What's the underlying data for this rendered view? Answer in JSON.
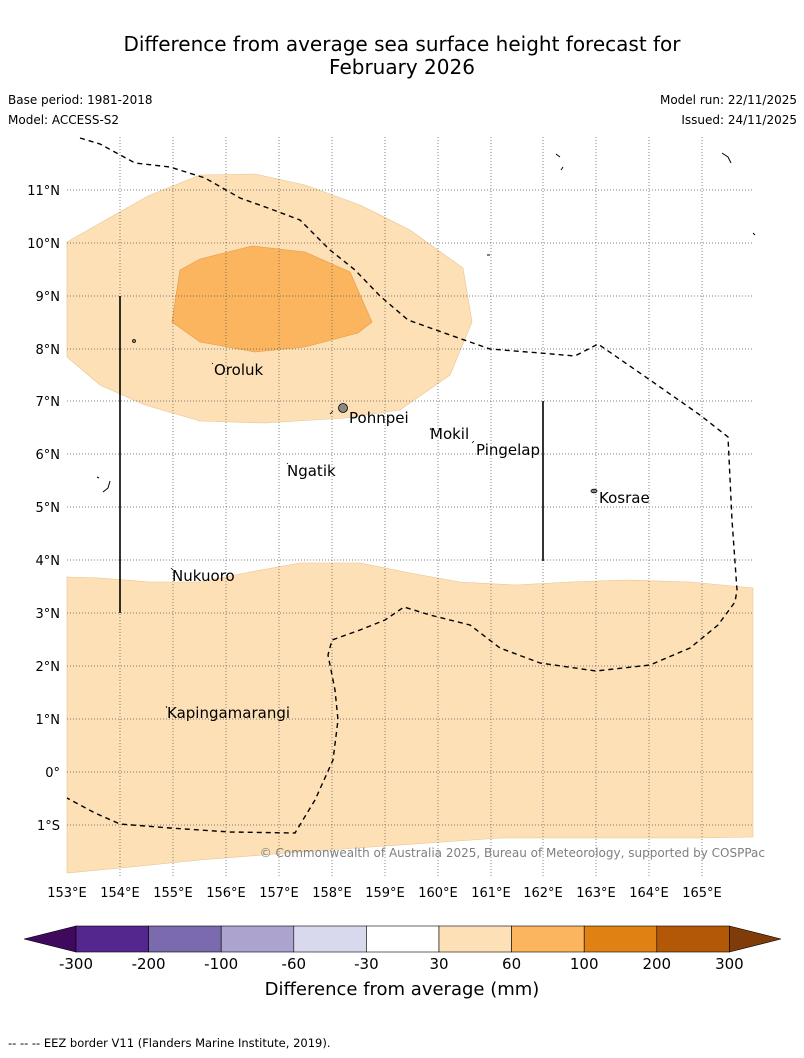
{
  "title_line1": "Difference from average sea surface height forecast for",
  "title_line2": "February 2026",
  "base_period": "Base period: 1981-2018",
  "model": "Model: ACCESS-S2",
  "model_run": "Model run: 22/11/2025",
  "issued": "Issued: 24/11/2025",
  "copyright": "© Commonwealth of Australia 2025, Bureau of Meteorology, supported by COSPPac",
  "lat_labels": [
    "11°N",
    "10°N",
    "9°N",
    "8°N",
    "7°N",
    "6°N",
    "5°N",
    "4°N",
    "3°N",
    "2°N",
    "1°N",
    "0°",
    "1°S"
  ],
  "lon_labels": [
    "153°E",
    "154°E",
    "155°E",
    "156°E",
    "157°E",
    "158°E",
    "159°E",
    "160°E",
    "161°E",
    "162°E",
    "163°E",
    "164°E",
    "165°E"
  ],
  "places": [
    {
      "name": "Oroluk"
    },
    {
      "name": "Pohnpei"
    },
    {
      "name": "Mokil"
    },
    {
      "name": "Pingelap"
    },
    {
      "name": "Ngatik"
    },
    {
      "name": "Kosrae"
    },
    {
      "name": "Nukuoro"
    },
    {
      "name": "Kapingamarangi"
    }
  ],
  "legend": {
    "title": "Difference from average (mm)",
    "ticks": [
      "-300",
      "-200",
      "-100",
      "-60",
      "-30",
      "30",
      "60",
      "100",
      "200",
      "300"
    ],
    "colors": [
      "#3f0a5e",
      "#54278f",
      "#7b6aad",
      "#aca4cf",
      "#d9d9ee",
      "#ffffff",
      "#fde0b6",
      "#fbb55f",
      "#e08213",
      "#b25806",
      "#7f3b08"
    ]
  },
  "footnote": "-- -- -- EEZ border V11 (Flanders Marine Institute, 2019)."
}
